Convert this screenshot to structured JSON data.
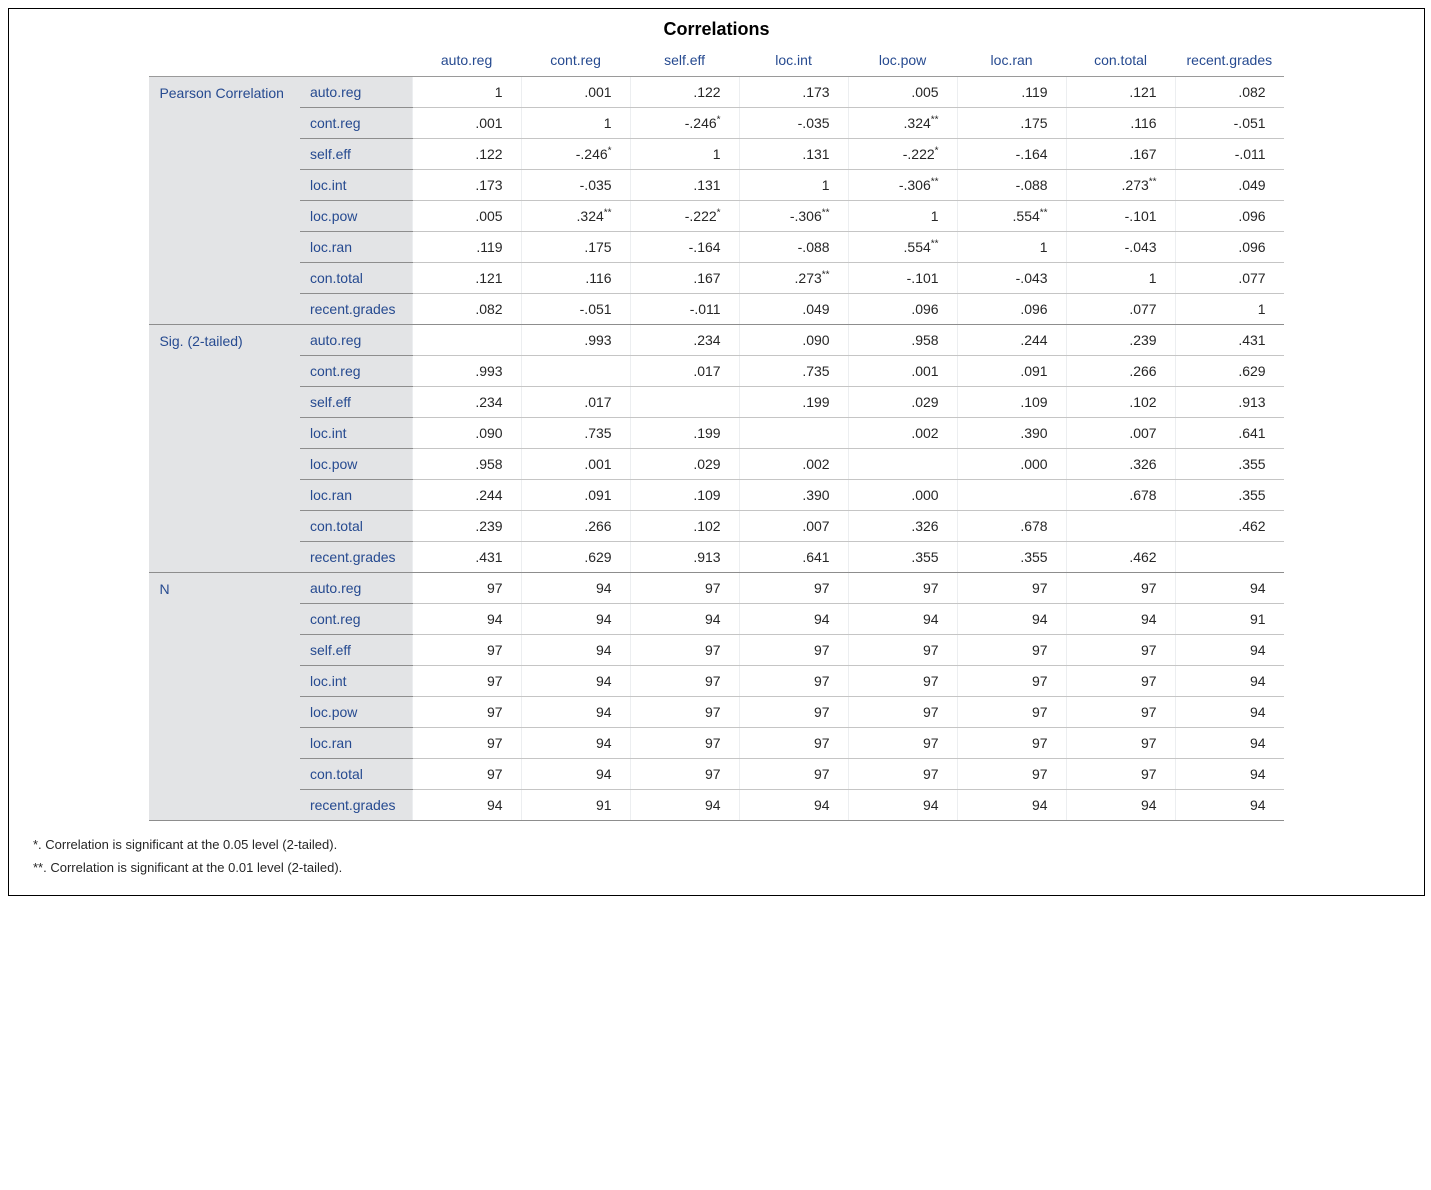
{
  "title": "Correlations",
  "columns": [
    "auto.reg",
    "cont.reg",
    "self.eff",
    "loc.int",
    "loc.pow",
    "loc.ran",
    "con.total",
    "recent.grades"
  ],
  "rowVars": [
    "auto.reg",
    "cont.reg",
    "self.eff",
    "loc.int",
    "loc.pow",
    "loc.ran",
    "con.total",
    "recent.grades"
  ],
  "groups": [
    {
      "label": "Pearson Correlation",
      "rows": [
        [
          {
            "v": "1"
          },
          {
            "v": ".001"
          },
          {
            "v": ".122"
          },
          {
            "v": ".173"
          },
          {
            "v": ".005"
          },
          {
            "v": ".119"
          },
          {
            "v": ".121"
          },
          {
            "v": ".082"
          }
        ],
        [
          {
            "v": ".001"
          },
          {
            "v": "1"
          },
          {
            "v": "-.246",
            "s": "*"
          },
          {
            "v": "-.035"
          },
          {
            "v": ".324",
            "s": "**"
          },
          {
            "v": ".175"
          },
          {
            "v": ".116"
          },
          {
            "v": "-.051"
          }
        ],
        [
          {
            "v": ".122"
          },
          {
            "v": "-.246",
            "s": "*"
          },
          {
            "v": "1"
          },
          {
            "v": ".131"
          },
          {
            "v": "-.222",
            "s": "*"
          },
          {
            "v": "-.164"
          },
          {
            "v": ".167"
          },
          {
            "v": "-.011"
          }
        ],
        [
          {
            "v": ".173"
          },
          {
            "v": "-.035"
          },
          {
            "v": ".131"
          },
          {
            "v": "1"
          },
          {
            "v": "-.306",
            "s": "**"
          },
          {
            "v": "-.088"
          },
          {
            "v": ".273",
            "s": "**"
          },
          {
            "v": ".049"
          }
        ],
        [
          {
            "v": ".005"
          },
          {
            "v": ".324",
            "s": "**"
          },
          {
            "v": "-.222",
            "s": "*"
          },
          {
            "v": "-.306",
            "s": "**"
          },
          {
            "v": "1"
          },
          {
            "v": ".554",
            "s": "**"
          },
          {
            "v": "-.101"
          },
          {
            "v": ".096"
          }
        ],
        [
          {
            "v": ".119"
          },
          {
            "v": ".175"
          },
          {
            "v": "-.164"
          },
          {
            "v": "-.088"
          },
          {
            "v": ".554",
            "s": "**"
          },
          {
            "v": "1"
          },
          {
            "v": "-.043"
          },
          {
            "v": ".096"
          }
        ],
        [
          {
            "v": ".121"
          },
          {
            "v": ".116"
          },
          {
            "v": ".167"
          },
          {
            "v": ".273",
            "s": "**"
          },
          {
            "v": "-.101"
          },
          {
            "v": "-.043"
          },
          {
            "v": "1"
          },
          {
            "v": ".077"
          }
        ],
        [
          {
            "v": ".082"
          },
          {
            "v": "-.051"
          },
          {
            "v": "-.011"
          },
          {
            "v": ".049"
          },
          {
            "v": ".096"
          },
          {
            "v": ".096"
          },
          {
            "v": ".077"
          },
          {
            "v": "1"
          }
        ]
      ]
    },
    {
      "label": "Sig. (2-tailed)",
      "rows": [
        [
          {
            "v": ""
          },
          {
            "v": ".993"
          },
          {
            "v": ".234"
          },
          {
            "v": ".090"
          },
          {
            "v": ".958"
          },
          {
            "v": ".244"
          },
          {
            "v": ".239"
          },
          {
            "v": ".431"
          }
        ],
        [
          {
            "v": ".993"
          },
          {
            "v": ""
          },
          {
            "v": ".017"
          },
          {
            "v": ".735"
          },
          {
            "v": ".001"
          },
          {
            "v": ".091"
          },
          {
            "v": ".266"
          },
          {
            "v": ".629"
          }
        ],
        [
          {
            "v": ".234"
          },
          {
            "v": ".017"
          },
          {
            "v": ""
          },
          {
            "v": ".199"
          },
          {
            "v": ".029"
          },
          {
            "v": ".109"
          },
          {
            "v": ".102"
          },
          {
            "v": ".913"
          }
        ],
        [
          {
            "v": ".090"
          },
          {
            "v": ".735"
          },
          {
            "v": ".199"
          },
          {
            "v": ""
          },
          {
            "v": ".002"
          },
          {
            "v": ".390"
          },
          {
            "v": ".007"
          },
          {
            "v": ".641"
          }
        ],
        [
          {
            "v": ".958"
          },
          {
            "v": ".001"
          },
          {
            "v": ".029"
          },
          {
            "v": ".002"
          },
          {
            "v": ""
          },
          {
            "v": ".000"
          },
          {
            "v": ".326"
          },
          {
            "v": ".355"
          }
        ],
        [
          {
            "v": ".244"
          },
          {
            "v": ".091"
          },
          {
            "v": ".109"
          },
          {
            "v": ".390"
          },
          {
            "v": ".000"
          },
          {
            "v": ""
          },
          {
            "v": ".678"
          },
          {
            "v": ".355"
          }
        ],
        [
          {
            "v": ".239"
          },
          {
            "v": ".266"
          },
          {
            "v": ".102"
          },
          {
            "v": ".007"
          },
          {
            "v": ".326"
          },
          {
            "v": ".678"
          },
          {
            "v": ""
          },
          {
            "v": ".462"
          }
        ],
        [
          {
            "v": ".431"
          },
          {
            "v": ".629"
          },
          {
            "v": ".913"
          },
          {
            "v": ".641"
          },
          {
            "v": ".355"
          },
          {
            "v": ".355"
          },
          {
            "v": ".462"
          },
          {
            "v": ""
          }
        ]
      ]
    },
    {
      "label": "N",
      "rows": [
        [
          {
            "v": "97"
          },
          {
            "v": "94"
          },
          {
            "v": "97"
          },
          {
            "v": "97"
          },
          {
            "v": "97"
          },
          {
            "v": "97"
          },
          {
            "v": "97"
          },
          {
            "v": "94"
          }
        ],
        [
          {
            "v": "94"
          },
          {
            "v": "94"
          },
          {
            "v": "94"
          },
          {
            "v": "94"
          },
          {
            "v": "94"
          },
          {
            "v": "94"
          },
          {
            "v": "94"
          },
          {
            "v": "91"
          }
        ],
        [
          {
            "v": "97"
          },
          {
            "v": "94"
          },
          {
            "v": "97"
          },
          {
            "v": "97"
          },
          {
            "v": "97"
          },
          {
            "v": "97"
          },
          {
            "v": "97"
          },
          {
            "v": "94"
          }
        ],
        [
          {
            "v": "97"
          },
          {
            "v": "94"
          },
          {
            "v": "97"
          },
          {
            "v": "97"
          },
          {
            "v": "97"
          },
          {
            "v": "97"
          },
          {
            "v": "97"
          },
          {
            "v": "94"
          }
        ],
        [
          {
            "v": "97"
          },
          {
            "v": "94"
          },
          {
            "v": "97"
          },
          {
            "v": "97"
          },
          {
            "v": "97"
          },
          {
            "v": "97"
          },
          {
            "v": "97"
          },
          {
            "v": "94"
          }
        ],
        [
          {
            "v": "97"
          },
          {
            "v": "94"
          },
          {
            "v": "97"
          },
          {
            "v": "97"
          },
          {
            "v": "97"
          },
          {
            "v": "97"
          },
          {
            "v": "97"
          },
          {
            "v": "94"
          }
        ],
        [
          {
            "v": "97"
          },
          {
            "v": "94"
          },
          {
            "v": "97"
          },
          {
            "v": "97"
          },
          {
            "v": "97"
          },
          {
            "v": "97"
          },
          {
            "v": "97"
          },
          {
            "v": "94"
          }
        ],
        [
          {
            "v": "94"
          },
          {
            "v": "91"
          },
          {
            "v": "94"
          },
          {
            "v": "94"
          },
          {
            "v": "94"
          },
          {
            "v": "94"
          },
          {
            "v": "94"
          },
          {
            "v": "94"
          }
        ]
      ]
    }
  ],
  "footnotes": [
    "*. Correlation is significant at the 0.05 level (2-tailed).",
    "**. Correlation is significant at the 0.01 level (2-tailed)."
  ],
  "style": {
    "header_text_color": "#264a90",
    "row_header_bg": "#e3e4e6",
    "inner_border_color": "#c5c5c5",
    "group_border_color": "#8d8d8d",
    "font_family": "Arial",
    "title_fontsize_pt": 14,
    "body_fontsize_pt": 10
  }
}
